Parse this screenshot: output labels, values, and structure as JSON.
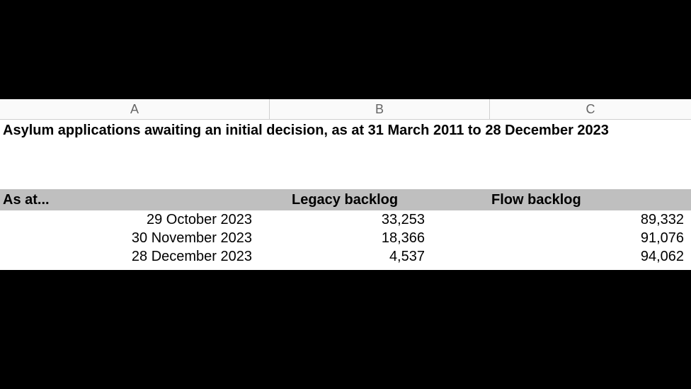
{
  "columns": {
    "a_label": "A",
    "b_label": "B",
    "c_label": "C"
  },
  "title": "Asylum applications awaiting an initial decision, as at 31 March 2011 to 28 December 2023",
  "table": {
    "headers": {
      "as_at": "As at...",
      "legacy": "Legacy backlog",
      "flow": "Flow backlog"
    },
    "rows": [
      {
        "date": "29 October 2023",
        "legacy": "33,253",
        "flow": "89,332"
      },
      {
        "date": "30 November 2023",
        "legacy": "18,366",
        "flow": "91,076"
      },
      {
        "date": "28 December 2023",
        "legacy": "4,537",
        "flow": "94,062"
      }
    ]
  },
  "style": {
    "background_color": "#000000",
    "sheet_background": "#ffffff",
    "col_header_background": "#fafafa",
    "col_header_text": "#666666",
    "border_color": "#d0d0d0",
    "header_row_background": "#bfbfbf",
    "text_color": "#000000",
    "title_fontsize": 20,
    "header_fontsize": 20,
    "data_fontsize": 20,
    "col_widths": {
      "A": 380,
      "B": 310,
      "C": 284
    }
  }
}
